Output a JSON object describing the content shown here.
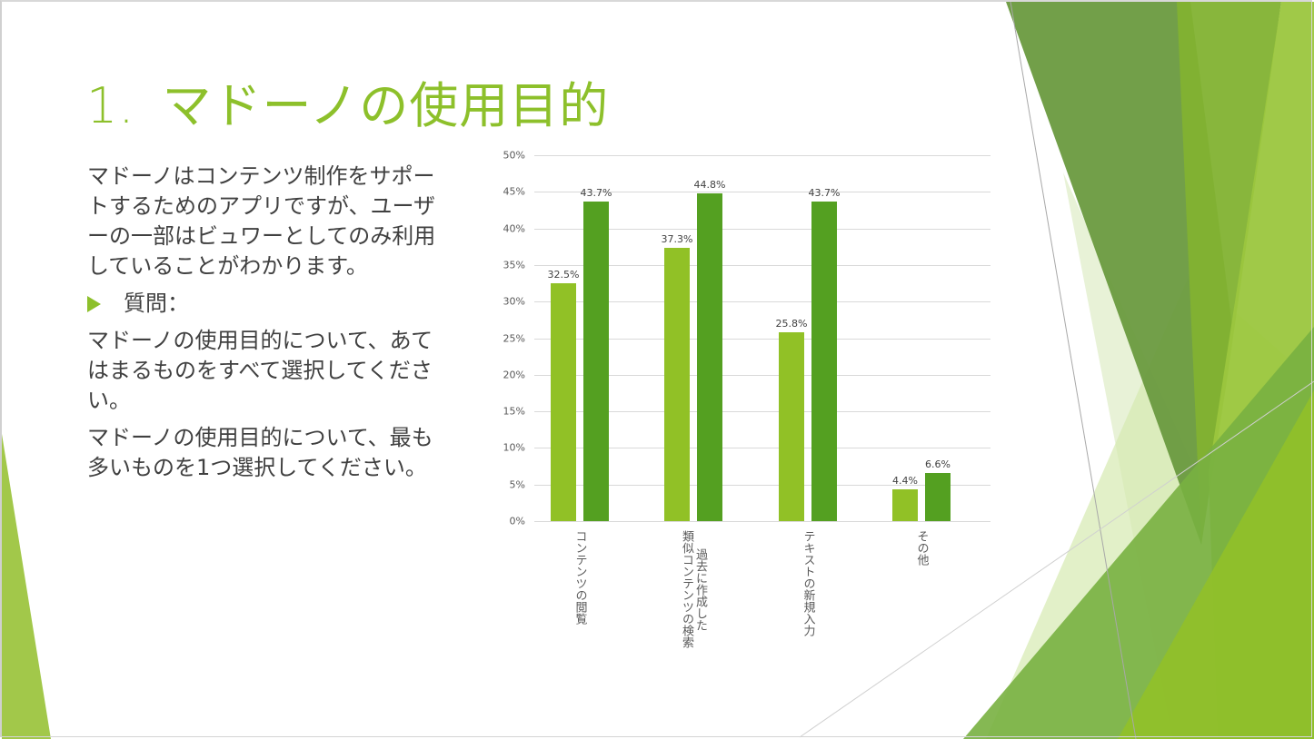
{
  "slide": {
    "title_number": "1.",
    "title_text": "マドーノの使用目的",
    "paragraph1": "マドーノはコンテンツ制作をサポートするためのアプリですが、ユーザーの一部はビュワーとしてのみ利用していることがわかります。",
    "bullet_label": "質問：",
    "question1": "マドーノの使用目的について、あてはまるものをすべて選択してください。",
    "question2": "マドーノの使用目的について、最も多いものを1つ選択してください。"
  },
  "colors": {
    "accent": "#8dc02b",
    "series1": "#91c126",
    "series2": "#54a021",
    "text": "#404040"
  },
  "chart_data": {
    "type": "bar",
    "title": "",
    "xlabel": "",
    "ylabel": "",
    "ylim": [
      0,
      50
    ],
    "yticks": [
      "0%",
      "5%",
      "10%",
      "15%",
      "20%",
      "25%",
      "30%",
      "35%",
      "40%",
      "45%",
      "50%"
    ],
    "grid": true,
    "legend": "none",
    "categories": [
      "コンテンツの閲覧",
      "過去に作成した類似コンテンツの検索",
      "テキストの新規入力",
      "その他"
    ],
    "category_label_lines": [
      [
        "コンテンツの閲覧"
      ],
      [
        "過去に作成した",
        "類似コンテンツの検索"
      ],
      [
        "テキストの新規入力"
      ],
      [
        "その他"
      ]
    ],
    "series": [
      {
        "name": "series1",
        "values": [
          32.5,
          37.3,
          25.8,
          4.4
        ],
        "labels": [
          "32.5%",
          "37.3%",
          "25.8%",
          "4.4%"
        ]
      },
      {
        "name": "series2",
        "values": [
          43.7,
          44.8,
          43.7,
          6.6
        ],
        "labels": [
          "43.7%",
          "44.8%",
          "43.7%",
          "6.6%"
        ]
      }
    ]
  }
}
